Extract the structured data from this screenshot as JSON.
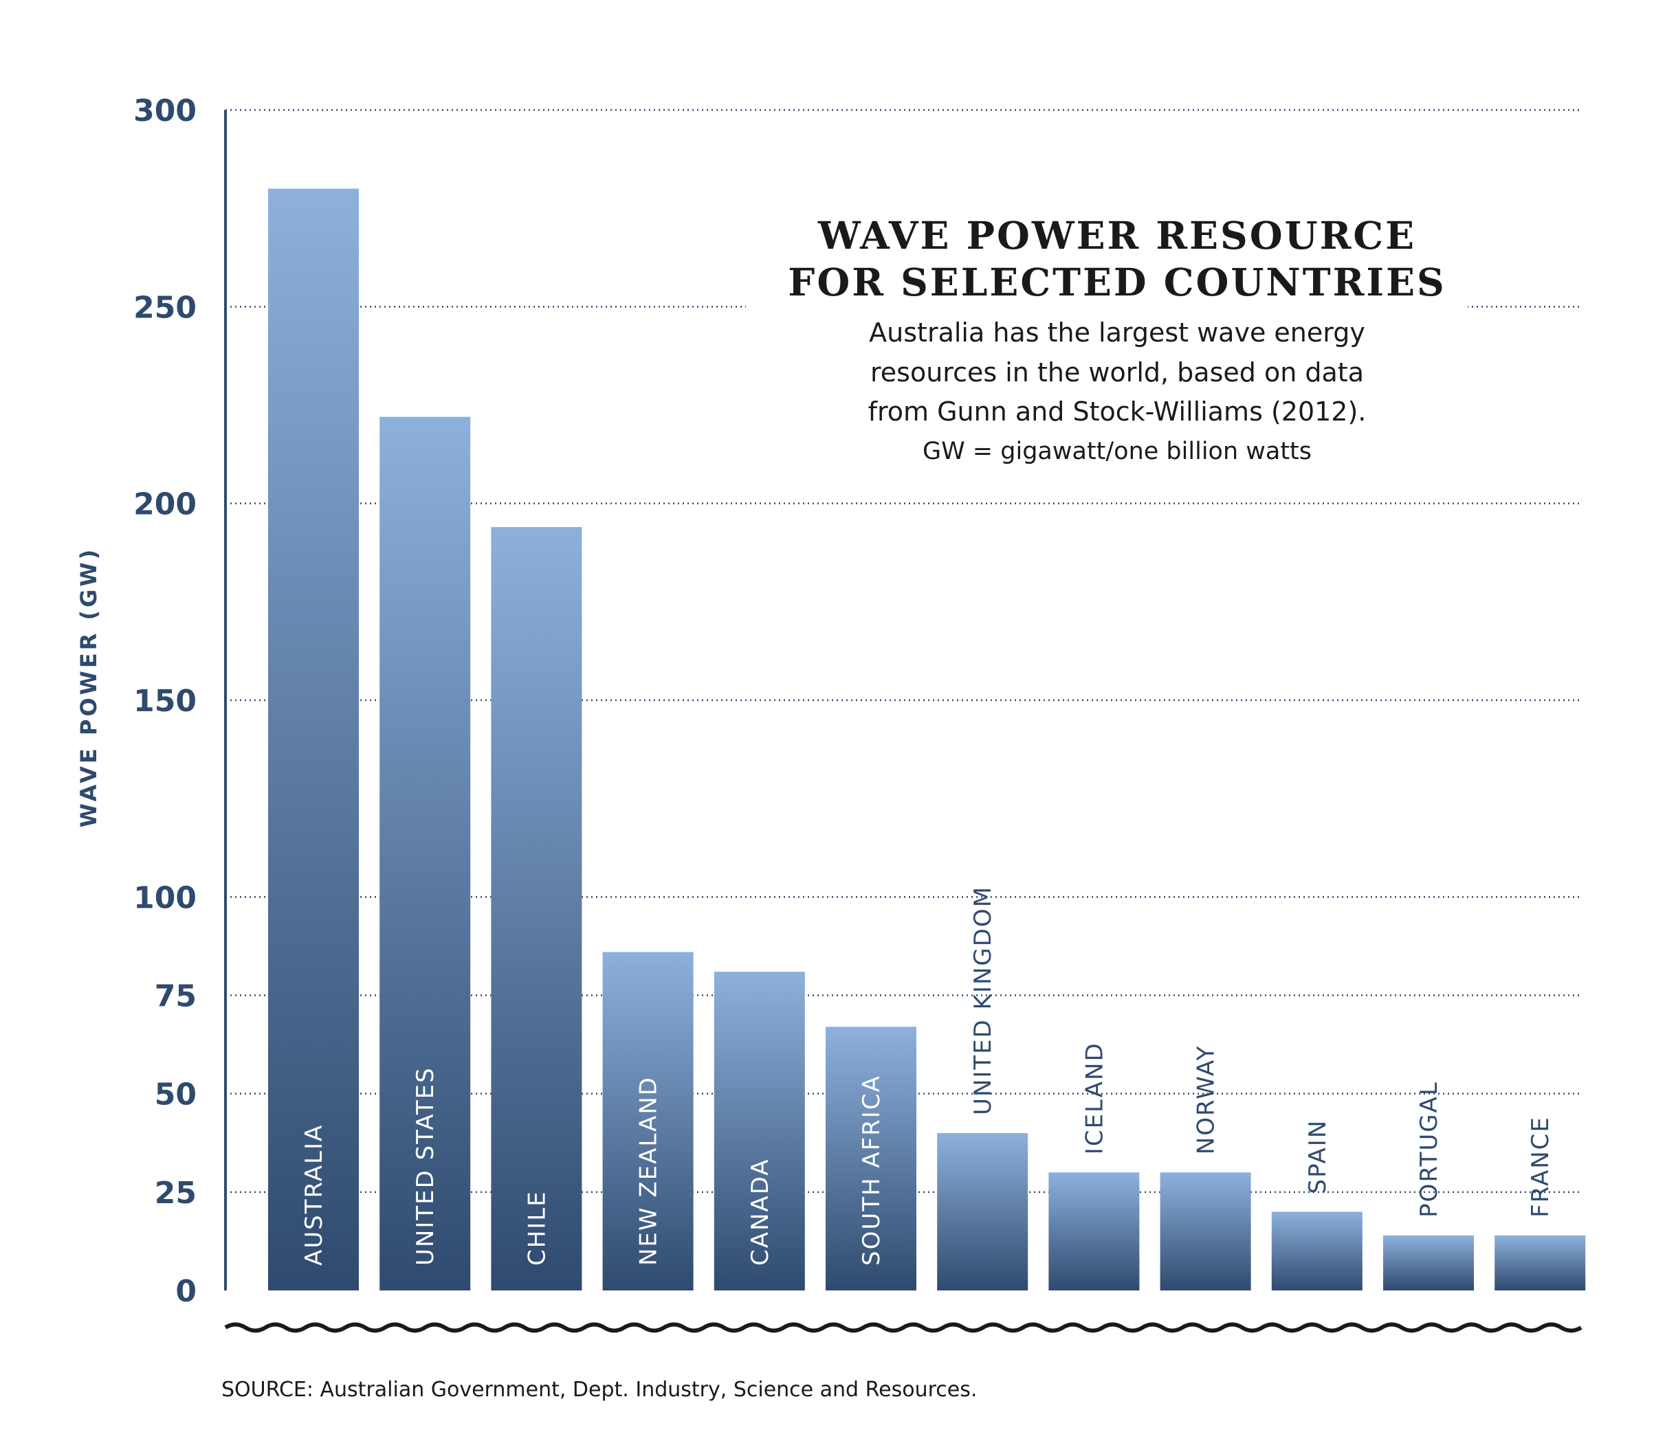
{
  "chart_data": {
    "type": "bar",
    "title_lines": [
      "WAVE POWER RESOURCE",
      "FOR SELECTED COUNTRIES"
    ],
    "subtitle_lines": [
      "Australia has the largest wave energy",
      "resources in the world, based on data",
      "from Gunn and Stock-Williams (2012)."
    ],
    "note": "GW = gigawatt/one billion watts",
    "ylabel": "WAVE POWER (GW)",
    "xlabel": "",
    "ylim": [
      0,
      300
    ],
    "yticks": [
      0,
      25,
      50,
      75,
      100,
      150,
      200,
      250,
      300
    ],
    "grid": true,
    "categories": [
      "AUSTRALIA",
      "UNITED STATES",
      "CHILE",
      "NEW ZEALAND",
      "CANADA",
      "SOUTH AFRICA",
      "UNITED KINGDOM",
      "ICELAND",
      "NORWAY",
      "SPAIN",
      "PORTUGAL",
      "FRANCE"
    ],
    "values": [
      280,
      222,
      194,
      86,
      81,
      67,
      40,
      30,
      30,
      20,
      14,
      14
    ],
    "source": "SOURCE: Australian Government, Dept. Industry, Science and Resources.",
    "colors": {
      "bar_top": "#8db1dc",
      "bar_bottom": "#2f4a6e",
      "axis": "#2f4a6e",
      "grid": "#2f4a6e",
      "text_dark": "#1a1a1a"
    }
  }
}
